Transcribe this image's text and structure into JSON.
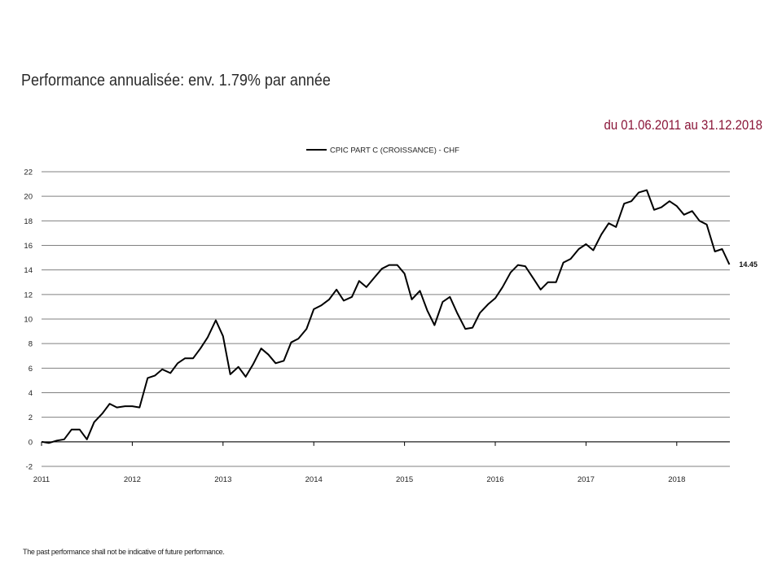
{
  "header": {
    "title": "Performance annualisée: env. 1.79% par année",
    "period": "du 01.06.2011 au 31.12.2018"
  },
  "footer": {
    "disclaimer": "The past performance shall not be indicative of future performance."
  },
  "colors": {
    "series_line": "#000000",
    "grid": "#808080",
    "period_text": "#8a1538"
  },
  "chart_data": {
    "type": "line",
    "title": "",
    "xlabel": "",
    "ylabel": "",
    "legend_position": "top-center",
    "grid": true,
    "x_ticks": [
      "2011",
      "2012",
      "2013",
      "2014",
      "2015",
      "2016",
      "2017",
      "2018"
    ],
    "xlim": [
      2011.0,
      2018.6
    ],
    "y_ticks": [
      -2,
      0,
      2,
      4,
      6,
      8,
      10,
      12,
      14,
      16,
      18,
      20,
      22
    ],
    "ylim": [
      -2,
      22
    ],
    "end_label": "14.45",
    "series": [
      {
        "name": "CPIC PART C (CROISSANCE) - CHF",
        "x": [
          2011.0,
          2011.08,
          2011.17,
          2011.25,
          2011.33,
          2011.42,
          2011.5,
          2011.58,
          2011.67,
          2011.75,
          2011.83,
          2011.92,
          2012.0,
          2012.08,
          2012.17,
          2012.25,
          2012.33,
          2012.42,
          2012.5,
          2012.58,
          2012.67,
          2012.75,
          2012.83,
          2012.92,
          2013.0,
          2013.08,
          2013.17,
          2013.25,
          2013.33,
          2013.42,
          2013.5,
          2013.58,
          2013.67,
          2013.75,
          2013.83,
          2013.92,
          2014.0,
          2014.08,
          2014.17,
          2014.25,
          2014.33,
          2014.42,
          2014.5,
          2014.58,
          2014.67,
          2014.75,
          2014.83,
          2014.92,
          2015.0,
          2015.08,
          2015.17,
          2015.25,
          2015.33,
          2015.42,
          2015.5,
          2015.58,
          2015.67,
          2015.75,
          2015.83,
          2015.92,
          2016.0,
          2016.08,
          2016.17,
          2016.25,
          2016.33,
          2016.42,
          2016.5,
          2016.58,
          2016.67,
          2016.75,
          2016.83,
          2016.92,
          2017.0,
          2017.08,
          2017.17,
          2017.25,
          2017.33,
          2017.42,
          2017.5,
          2017.58,
          2017.67,
          2017.75,
          2017.83,
          2017.92,
          2018.0,
          2018.08,
          2018.17,
          2018.25,
          2018.33,
          2018.42,
          2018.5,
          2018.58
        ],
        "y": [
          0.0,
          -0.1,
          0.1,
          0.2,
          1.0,
          1.0,
          0.2,
          1.6,
          2.3,
          3.1,
          2.8,
          2.9,
          2.9,
          2.8,
          5.2,
          5.4,
          5.9,
          5.6,
          6.4,
          6.8,
          6.8,
          7.6,
          8.5,
          9.9,
          8.6,
          5.5,
          6.1,
          5.3,
          6.3,
          7.6,
          7.1,
          6.4,
          6.6,
          8.1,
          8.4,
          9.2,
          10.8,
          11.1,
          11.6,
          12.4,
          11.5,
          11.8,
          13.1,
          12.6,
          13.4,
          14.1,
          14.4,
          14.4,
          13.7,
          11.6,
          12.3,
          10.7,
          9.5,
          11.4,
          11.8,
          10.5,
          9.2,
          9.3,
          10.5,
          11.2,
          11.7,
          12.6,
          13.8,
          14.4,
          14.3,
          13.3,
          12.4,
          13.0,
          13.0,
          14.6,
          14.9,
          15.7,
          16.1,
          15.6,
          16.9,
          17.8,
          17.5,
          19.4,
          19.6,
          20.3,
          20.5,
          18.9,
          19.1,
          19.6,
          19.2,
          18.5,
          18.8,
          18.0,
          17.7,
          15.5,
          15.7,
          14.45
        ]
      }
    ]
  }
}
